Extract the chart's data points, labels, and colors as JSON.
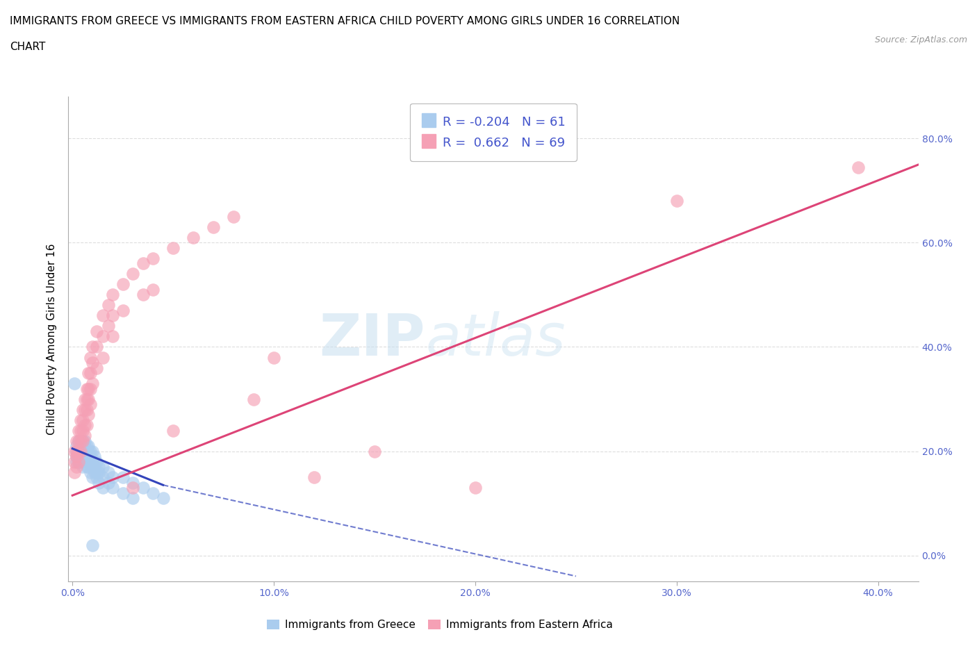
{
  "title_line1": "IMMIGRANTS FROM GREECE VS IMMIGRANTS FROM EASTERN AFRICA CHILD POVERTY AMONG GIRLS UNDER 16 CORRELATION",
  "title_line2": "CHART",
  "source": "Source: ZipAtlas.com",
  "ylabel": "Child Poverty Among Girls Under 16",
  "xlabel": "",
  "legend_label1": "Immigrants from Greece",
  "legend_label2": "Immigrants from Eastern Africa",
  "R1": -0.204,
  "N1": 61,
  "R2": 0.662,
  "N2": 69,
  "color_greece": "#aaccee",
  "color_ea": "#f5a0b5",
  "line_color_greece": "#3344bb",
  "line_color_ea": "#dd4477",
  "xlim": [
    -0.002,
    0.42
  ],
  "ylim": [
    -0.05,
    0.88
  ],
  "xticks": [
    0.0,
    0.1,
    0.2,
    0.3,
    0.4
  ],
  "xtick_labels": [
    "0.0%",
    "10.0%",
    "20.0%",
    "30.0%",
    "40.0%"
  ],
  "yticks": [
    0.0,
    0.2,
    0.4,
    0.6,
    0.8
  ],
  "ytick_labels": [
    "0.0%",
    "20.0%",
    "40.0%",
    "60.0%",
    "80.0%"
  ],
  "watermark_text": "ZIP",
  "watermark_text2": "atlas",
  "background_color": "#ffffff",
  "grid_color": "#dddddd",
  "title_fontsize": 11,
  "axis_label_fontsize": 11,
  "tick_fontsize": 10,
  "scatter_greece": [
    [
      0.001,
      0.33
    ],
    [
      0.002,
      0.21
    ],
    [
      0.002,
      0.19
    ],
    [
      0.002,
      0.18
    ],
    [
      0.002,
      0.2
    ],
    [
      0.003,
      0.22
    ],
    [
      0.003,
      0.2
    ],
    [
      0.003,
      0.19
    ],
    [
      0.003,
      0.18
    ],
    [
      0.004,
      0.21
    ],
    [
      0.004,
      0.2
    ],
    [
      0.004,
      0.19
    ],
    [
      0.004,
      0.18
    ],
    [
      0.005,
      0.22
    ],
    [
      0.005,
      0.2
    ],
    [
      0.005,
      0.19
    ],
    [
      0.005,
      0.17
    ],
    [
      0.006,
      0.22
    ],
    [
      0.006,
      0.21
    ],
    [
      0.006,
      0.2
    ],
    [
      0.006,
      0.19
    ],
    [
      0.007,
      0.21
    ],
    [
      0.007,
      0.2
    ],
    [
      0.007,
      0.18
    ],
    [
      0.007,
      0.17
    ],
    [
      0.008,
      0.21
    ],
    [
      0.008,
      0.2
    ],
    [
      0.008,
      0.19
    ],
    [
      0.008,
      0.17
    ],
    [
      0.009,
      0.2
    ],
    [
      0.009,
      0.19
    ],
    [
      0.009,
      0.18
    ],
    [
      0.009,
      0.16
    ],
    [
      0.01,
      0.2
    ],
    [
      0.01,
      0.18
    ],
    [
      0.01,
      0.17
    ],
    [
      0.01,
      0.15
    ],
    [
      0.011,
      0.19
    ],
    [
      0.011,
      0.17
    ],
    [
      0.011,
      0.16
    ],
    [
      0.012,
      0.18
    ],
    [
      0.012,
      0.16
    ],
    [
      0.012,
      0.15
    ],
    [
      0.013,
      0.17
    ],
    [
      0.013,
      0.16
    ],
    [
      0.013,
      0.14
    ],
    [
      0.015,
      0.17
    ],
    [
      0.015,
      0.15
    ],
    [
      0.015,
      0.13
    ],
    [
      0.018,
      0.16
    ],
    [
      0.018,
      0.14
    ],
    [
      0.02,
      0.15
    ],
    [
      0.02,
      0.13
    ],
    [
      0.025,
      0.15
    ],
    [
      0.025,
      0.12
    ],
    [
      0.03,
      0.14
    ],
    [
      0.03,
      0.11
    ],
    [
      0.035,
      0.13
    ],
    [
      0.01,
      0.02
    ],
    [
      0.04,
      0.12
    ],
    [
      0.045,
      0.11
    ]
  ],
  "scatter_ea": [
    [
      0.001,
      0.2
    ],
    [
      0.001,
      0.18
    ],
    [
      0.001,
      0.16
    ],
    [
      0.002,
      0.22
    ],
    [
      0.002,
      0.2
    ],
    [
      0.002,
      0.19
    ],
    [
      0.002,
      0.17
    ],
    [
      0.003,
      0.24
    ],
    [
      0.003,
      0.22
    ],
    [
      0.003,
      0.2
    ],
    [
      0.003,
      0.18
    ],
    [
      0.004,
      0.26
    ],
    [
      0.004,
      0.24
    ],
    [
      0.004,
      0.22
    ],
    [
      0.004,
      0.2
    ],
    [
      0.005,
      0.28
    ],
    [
      0.005,
      0.26
    ],
    [
      0.005,
      0.24
    ],
    [
      0.005,
      0.22
    ],
    [
      0.006,
      0.3
    ],
    [
      0.006,
      0.28
    ],
    [
      0.006,
      0.25
    ],
    [
      0.006,
      0.23
    ],
    [
      0.007,
      0.32
    ],
    [
      0.007,
      0.3
    ],
    [
      0.007,
      0.28
    ],
    [
      0.007,
      0.25
    ],
    [
      0.008,
      0.35
    ],
    [
      0.008,
      0.32
    ],
    [
      0.008,
      0.3
    ],
    [
      0.008,
      0.27
    ],
    [
      0.009,
      0.38
    ],
    [
      0.009,
      0.35
    ],
    [
      0.009,
      0.32
    ],
    [
      0.009,
      0.29
    ],
    [
      0.01,
      0.4
    ],
    [
      0.01,
      0.37
    ],
    [
      0.01,
      0.33
    ],
    [
      0.012,
      0.43
    ],
    [
      0.012,
      0.4
    ],
    [
      0.012,
      0.36
    ],
    [
      0.015,
      0.46
    ],
    [
      0.015,
      0.42
    ],
    [
      0.015,
      0.38
    ],
    [
      0.018,
      0.48
    ],
    [
      0.018,
      0.44
    ],
    [
      0.02,
      0.5
    ],
    [
      0.02,
      0.46
    ],
    [
      0.02,
      0.42
    ],
    [
      0.025,
      0.52
    ],
    [
      0.025,
      0.47
    ],
    [
      0.03,
      0.54
    ],
    [
      0.03,
      0.13
    ],
    [
      0.035,
      0.56
    ],
    [
      0.035,
      0.5
    ],
    [
      0.04,
      0.57
    ],
    [
      0.04,
      0.51
    ],
    [
      0.05,
      0.59
    ],
    [
      0.05,
      0.24
    ],
    [
      0.06,
      0.61
    ],
    [
      0.07,
      0.63
    ],
    [
      0.08,
      0.65
    ],
    [
      0.09,
      0.3
    ],
    [
      0.1,
      0.38
    ],
    [
      0.12,
      0.15
    ],
    [
      0.15,
      0.2
    ],
    [
      0.2,
      0.13
    ],
    [
      0.3,
      0.68
    ],
    [
      0.39,
      0.745
    ]
  ]
}
